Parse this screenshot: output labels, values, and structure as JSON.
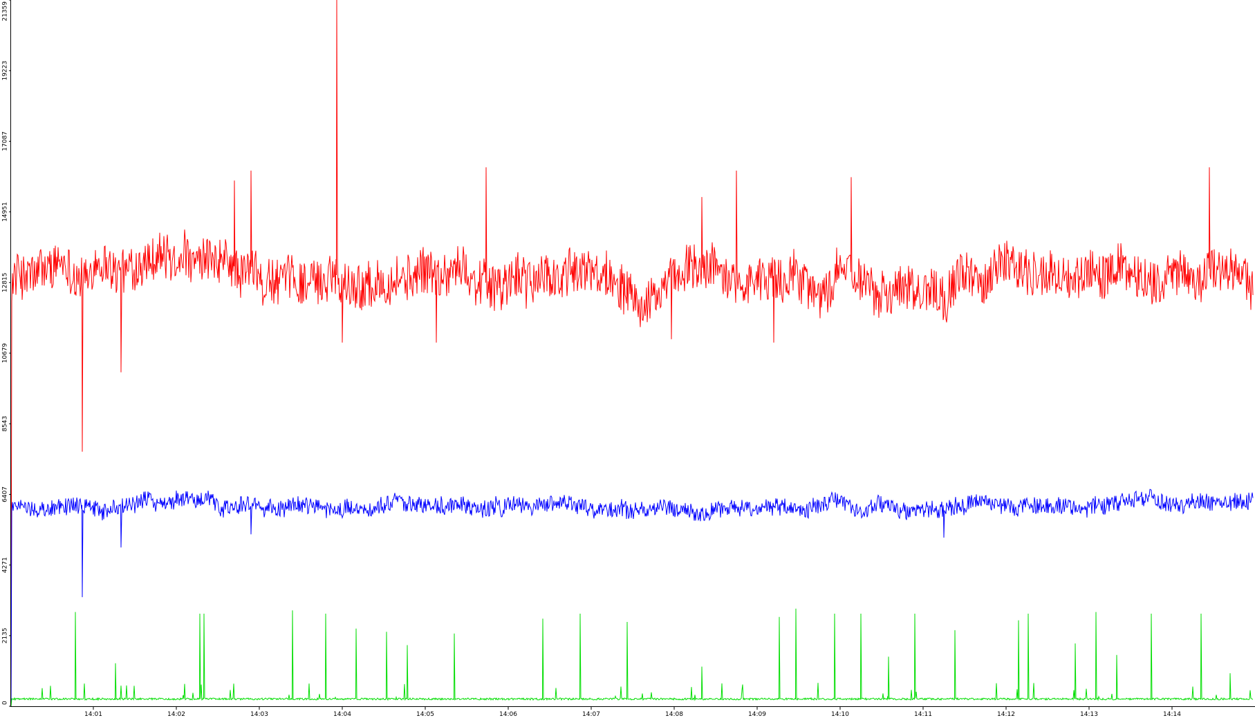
{
  "chart_data": {
    "type": "line",
    "title": "",
    "xlabel": "",
    "ylabel": "",
    "grid": false,
    "legend": "none",
    "x_range": [
      "14:00:00",
      "14:14:58"
    ],
    "ylim": [
      0,
      21359
    ],
    "y_ticks": [
      "0",
      "2135",
      "4271",
      "6407",
      "8543",
      "10679",
      "12815",
      "14951",
      "17087",
      "19223",
      "21359"
    ],
    "x_ticks": [
      "14:01",
      "14:02",
      "14:03",
      "14:04",
      "14:05",
      "14:06",
      "14:07",
      "14:08",
      "14:09",
      "14:10",
      "14:11",
      "14:12",
      "14:13",
      "14:14"
    ],
    "series": [
      {
        "color": "#ff0000",
        "baseline": 13000,
        "noise": 850,
        "spikes": [
          {
            "t": "14:00:52",
            "value": 7700
          },
          {
            "t": "14:01:20",
            "value": 10100
          },
          {
            "t": "14:02:42",
            "value": 15900
          },
          {
            "t": "14:02:54",
            "value": 16200
          },
          {
            "t": "14:03:56",
            "value": 21359
          },
          {
            "t": "14:04:00",
            "value": 11000
          },
          {
            "t": "14:05:08",
            "value": 11000
          },
          {
            "t": "14:05:44",
            "value": 16300
          },
          {
            "t": "14:07:58",
            "value": 11100
          },
          {
            "t": "14:08:20",
            "value": 15400
          },
          {
            "t": "14:08:45",
            "value": 16200
          },
          {
            "t": "14:09:12",
            "value": 11000
          },
          {
            "t": "14:10:08",
            "value": 16000
          },
          {
            "t": "14:14:27",
            "value": 16300
          }
        ]
      },
      {
        "color": "#0000ff",
        "baseline": 6050,
        "noise": 320,
        "spikes": [
          {
            "t": "14:00:52",
            "value": 3300
          },
          {
            "t": "14:01:20",
            "value": 4800
          },
          {
            "t": "14:02:54",
            "value": 5200
          },
          {
            "t": "14:11:15",
            "value": 5100
          }
        ]
      },
      {
        "color": "#00dd00",
        "baseline": 220,
        "noise": 60,
        "spikes": [
          {
            "t": "14:00:47",
            "value": 2850
          },
          {
            "t": "14:01:16",
            "value": 1300
          },
          {
            "t": "14:02:17",
            "value": 2800
          },
          {
            "t": "14:02:20",
            "value": 2800
          },
          {
            "t": "14:03:24",
            "value": 2900
          },
          {
            "t": "14:03:48",
            "value": 2800
          },
          {
            "t": "14:04:10",
            "value": 2350
          },
          {
            "t": "14:04:32",
            "value": 2250
          },
          {
            "t": "14:04:47",
            "value": 1850
          },
          {
            "t": "14:05:21",
            "value": 2200
          },
          {
            "t": "14:06:25",
            "value": 2650
          },
          {
            "t": "14:06:52",
            "value": 2800
          },
          {
            "t": "14:07:26",
            "value": 2550
          },
          {
            "t": "14:08:20",
            "value": 1200
          },
          {
            "t": "14:09:16",
            "value": 2700
          },
          {
            "t": "14:09:28",
            "value": 2950
          },
          {
            "t": "14:09:56",
            "value": 2800
          },
          {
            "t": "14:10:15",
            "value": 2800
          },
          {
            "t": "14:10:35",
            "value": 1500
          },
          {
            "t": "14:10:54",
            "value": 2800
          },
          {
            "t": "14:11:23",
            "value": 2300
          },
          {
            "t": "14:12:09",
            "value": 2600
          },
          {
            "t": "14:12:16",
            "value": 2800
          },
          {
            "t": "14:12:50",
            "value": 1900
          },
          {
            "t": "14:13:05",
            "value": 2850
          },
          {
            "t": "14:13:20",
            "value": 1550
          },
          {
            "t": "14:13:45",
            "value": 2800
          },
          {
            "t": "14:14:21",
            "value": 2800
          },
          {
            "t": "14:14:42",
            "value": 1000
          }
        ]
      }
    ]
  }
}
